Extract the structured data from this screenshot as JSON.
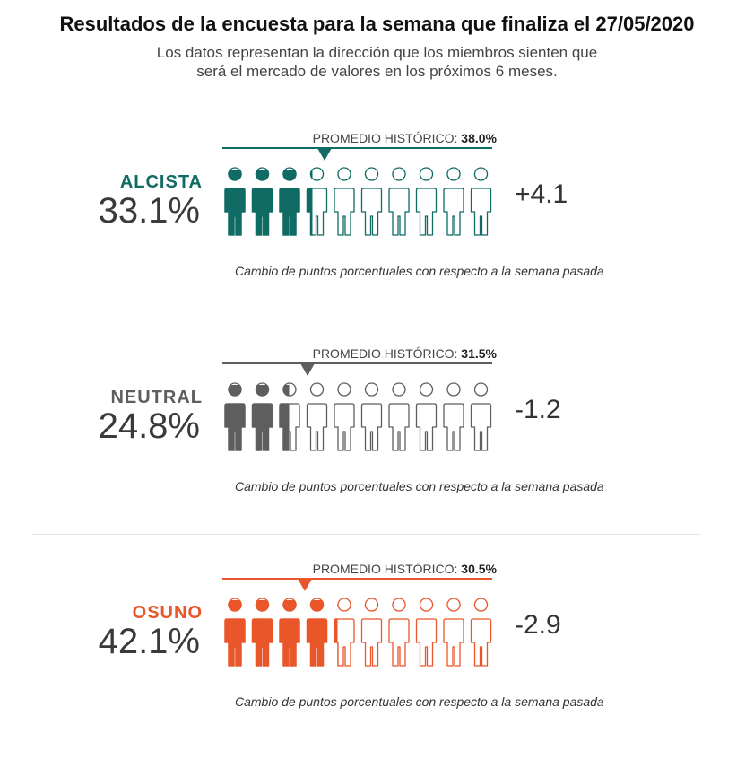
{
  "title": "Resultados de la encuesta para la semana que finaliza el 27/05/2020",
  "subtitle_line1": "Los datos representan la dirección que los miembros sienten que",
  "subtitle_line2": "será el mercado de valores en los próximos 6 meses.",
  "chart_data": {
    "type": "pictogram",
    "icons_total": 10,
    "units": "%",
    "categories": [
      {
        "label": "ALCISTA",
        "value": 33.1,
        "value_text": "33.1%",
        "historical_label": "PROMEDIO HISTÓRICO:",
        "historical_average": 38.0,
        "historical_text": "38.0%",
        "change": 4.1,
        "change_text": "+4.1",
        "note": "Cambio de puntos porcentuales con respecto a la semana pasada",
        "color": "#0f6b63"
      },
      {
        "label": "NEUTRAL",
        "value": 24.8,
        "value_text": "24.8%",
        "historical_label": "PROMEDIO HISTÓRICO:",
        "historical_average": 31.5,
        "historical_text": "31.5%",
        "change": -1.2,
        "change_text": "-1.2",
        "note": "Cambio de puntos porcentuales con respecto a la semana pasada",
        "color": "#5e5e5e"
      },
      {
        "label": "OSUNO",
        "value": 42.1,
        "value_text": "42.1%",
        "historical_label": "PROMEDIO HISTÓRICO:",
        "historical_average": 30.5,
        "historical_text": "30.5%",
        "change": -2.9,
        "change_text": "-2.9",
        "note": "Cambio de puntos porcentuales con respecto a la semana pasada",
        "color": "#e8562a"
      }
    ]
  }
}
